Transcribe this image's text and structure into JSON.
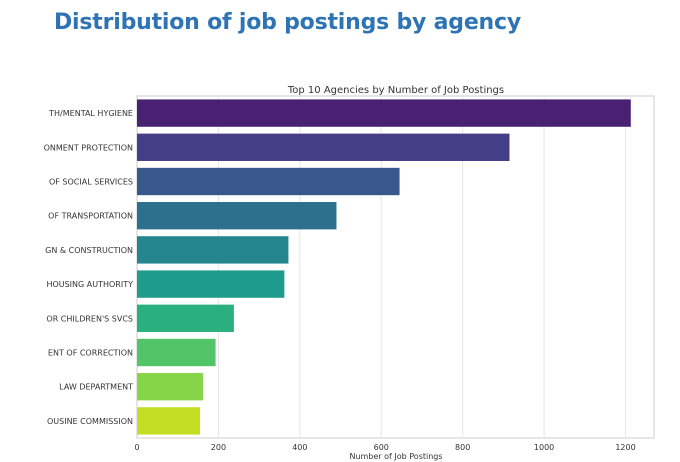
{
  "slide": {
    "title": "Distribution of job postings by agency"
  },
  "chart_data": {
    "type": "bar",
    "orientation": "horizontal",
    "title": "Top 10 Agencies by Number of Job Postings",
    "xlabel": "Number of Job Postings",
    "ylabel": "",
    "xlim": [
      0,
      1270
    ],
    "xticks": [
      0,
      200,
      400,
      600,
      800,
      1000,
      1200
    ],
    "grid": true,
    "categories": [
      "TH/MENTAL HYGIENE",
      "ONMENT PROTECTION",
      "OF SOCIAL SERVICES",
      "OF TRANSPORTATION",
      "GN & CONSTRUCTION",
      "HOUSING AUTHORITY",
      "OR CHILDREN'S SVCS",
      "ENT OF CORRECTION",
      "LAW DEPARTMENT",
      "OUSINE COMMISSION"
    ],
    "values": [
      1213,
      915,
      645,
      490,
      372,
      362,
      238,
      193,
      162,
      155
    ],
    "colors": [
      "#482173",
      "#433e85",
      "#38588c",
      "#2d708e",
      "#25858e",
      "#1e9b8a",
      "#2ab07f",
      "#52c569",
      "#86d549",
      "#c2df23"
    ]
  }
}
